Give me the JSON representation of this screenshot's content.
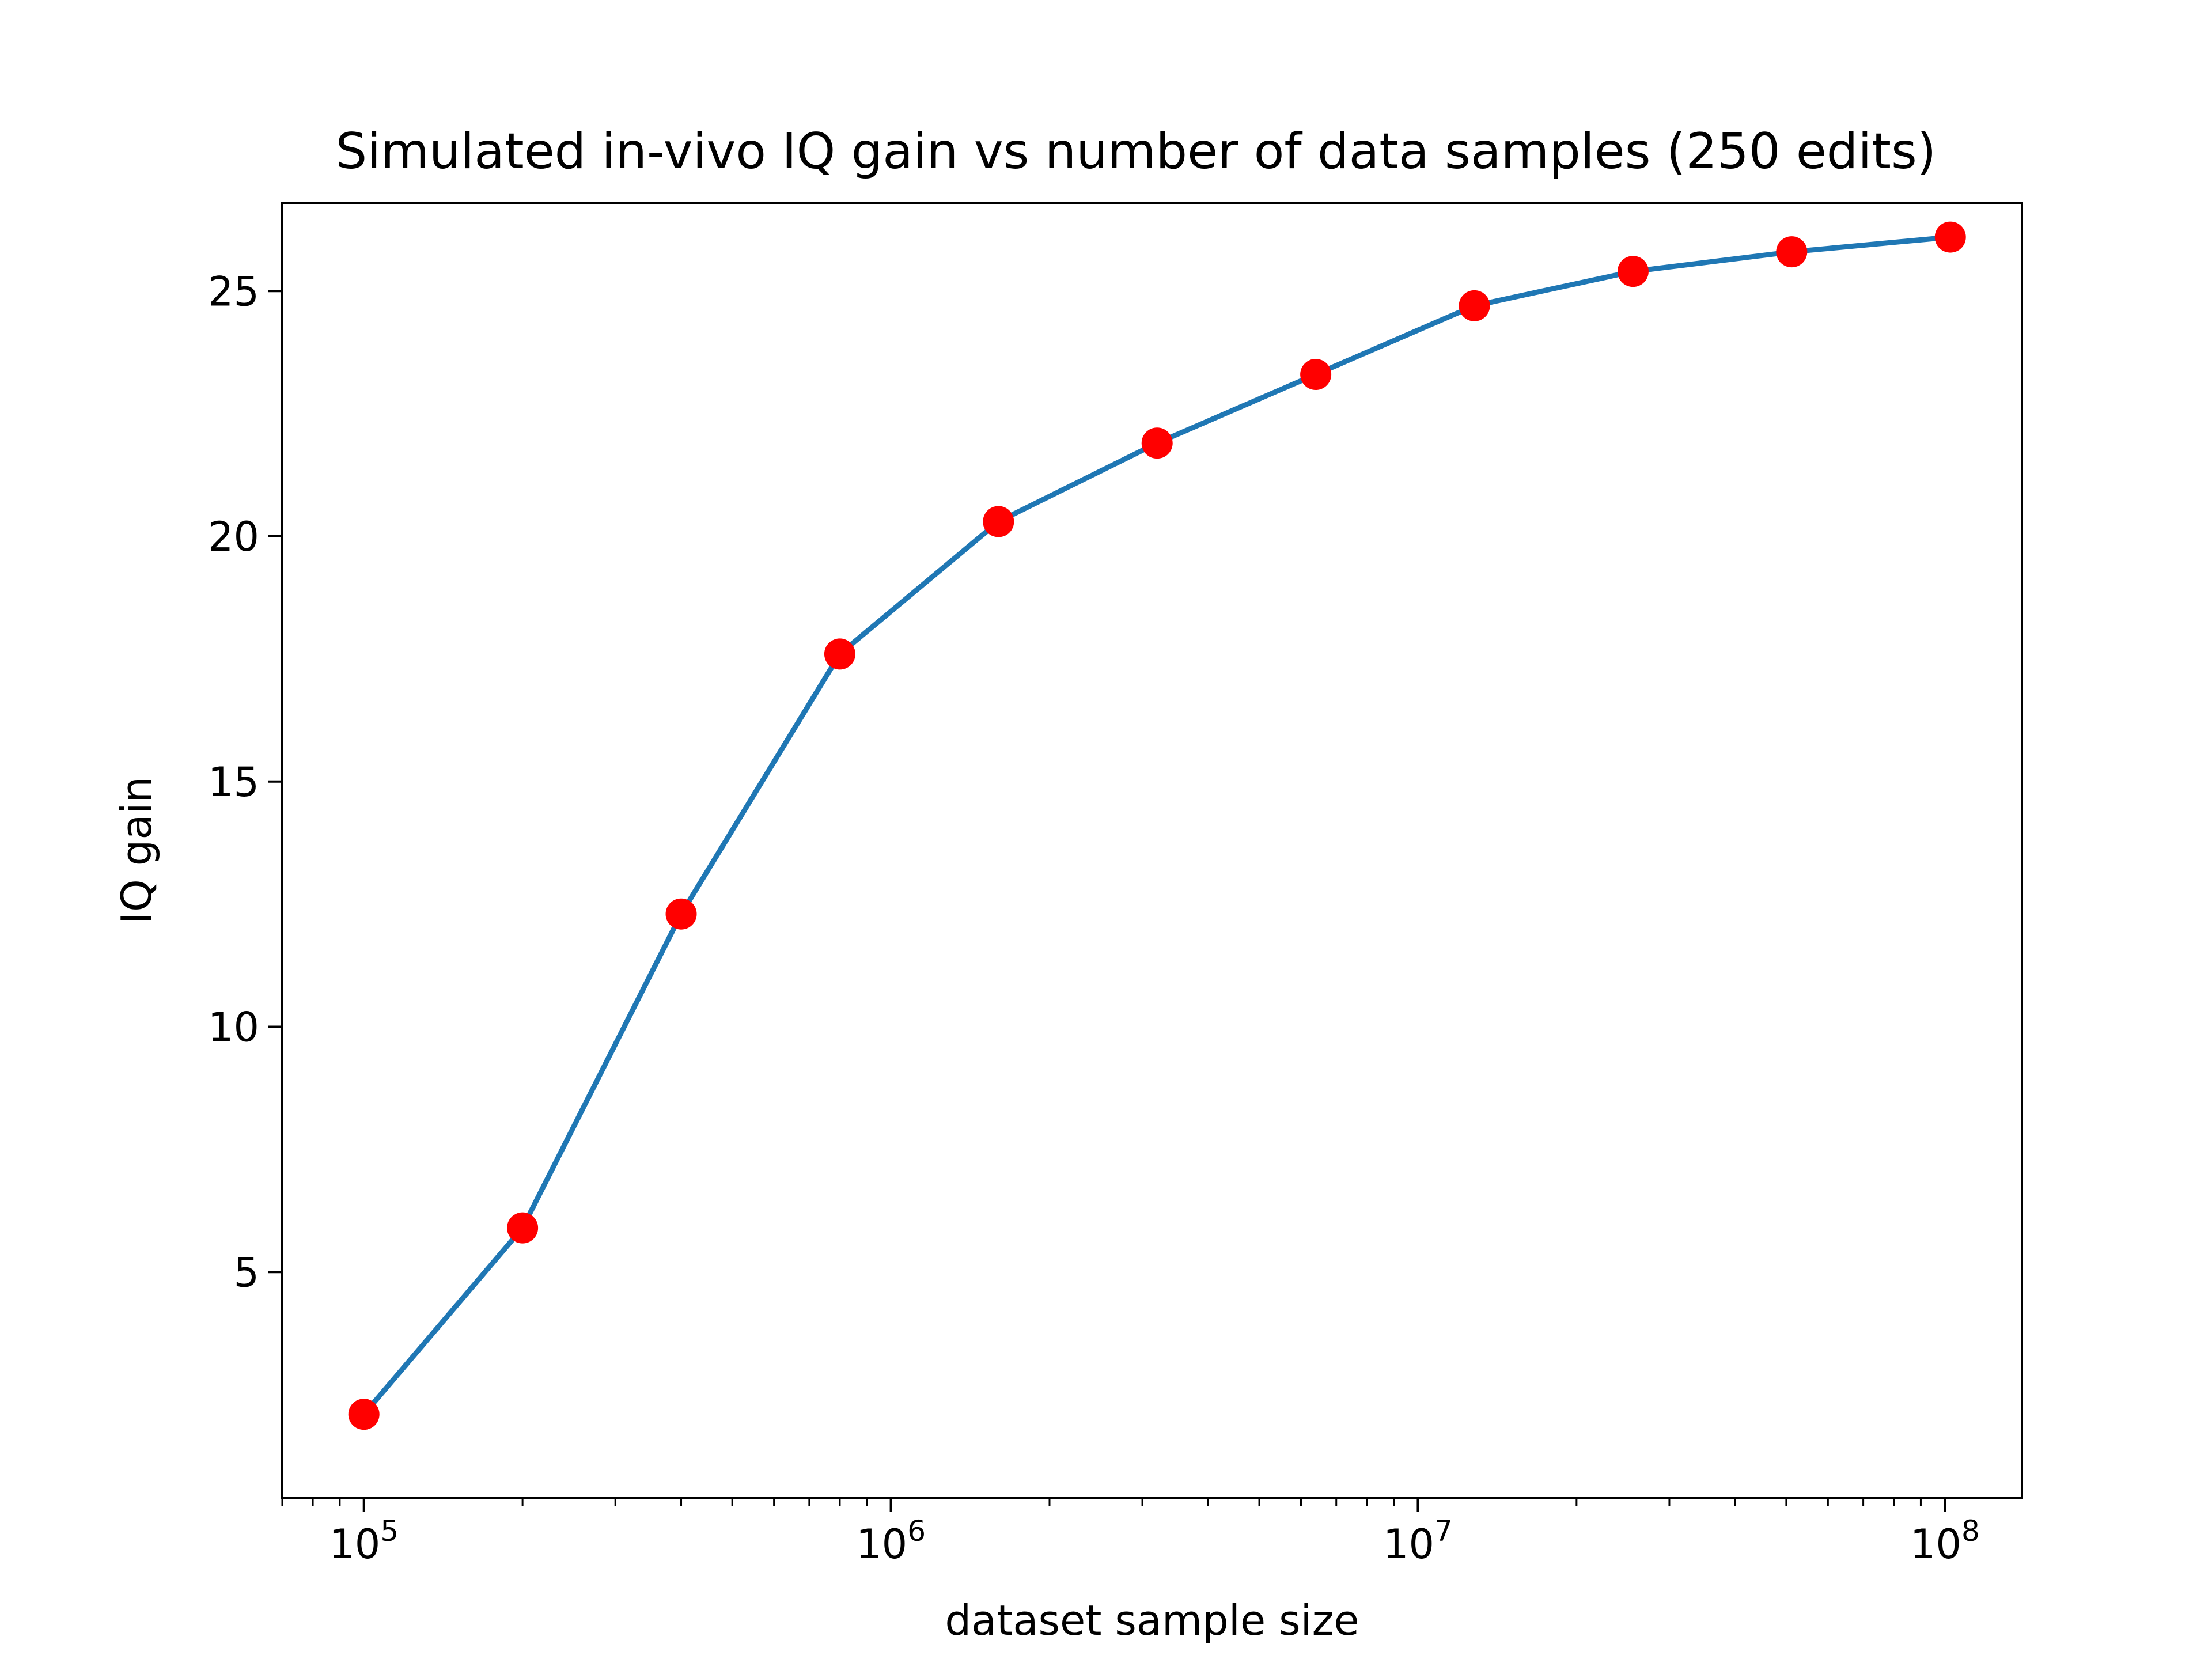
{
  "chart_data": {
    "type": "line",
    "title": "Simulated in-vivo IQ gain vs number of data samples (250 edits)",
    "xlabel": "dataset sample size",
    "ylabel": "IQ gain",
    "xscale": "log",
    "xlim": [
      70000,
      140000000
    ],
    "ylim": [
      0.4,
      26.8
    ],
    "x_ticks": [
      100000,
      1000000,
      10000000,
      100000000
    ],
    "x_tick_labels": [
      {
        "base": "10",
        "exp": "5"
      },
      {
        "base": "10",
        "exp": "6"
      },
      {
        "base": "10",
        "exp": "7"
      },
      {
        "base": "10",
        "exp": "8"
      }
    ],
    "y_ticks": [
      5,
      10,
      15,
      20,
      25
    ],
    "y_tick_labels": [
      "5",
      "10",
      "15",
      "20",
      "25"
    ],
    "grid": false,
    "series": [
      {
        "name": "IQ gain",
        "line_color": "#1f77b4",
        "marker_color": "#ff0000",
        "x": [
          100000,
          200000,
          400000,
          800000,
          1600000,
          3200000,
          6400000,
          12800000,
          25600000,
          51200000,
          102400000
        ],
        "y": [
          2.1,
          5.9,
          12.3,
          17.6,
          20.3,
          21.9,
          23.3,
          24.7,
          25.4,
          25.8,
          26.1
        ]
      }
    ]
  }
}
